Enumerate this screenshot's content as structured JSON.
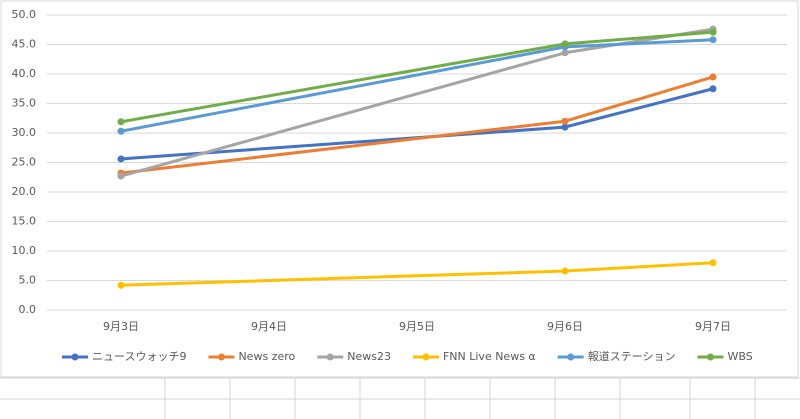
{
  "chart_data": {
    "type": "line",
    "x": [
      3,
      6,
      7
    ],
    "xlim": [
      2.5,
      7.5
    ],
    "xticks": [
      {
        "value": 3,
        "label": "9月3日"
      },
      {
        "value": 4,
        "label": "9月4日"
      },
      {
        "value": 5,
        "label": "9月5日"
      },
      {
        "value": 6,
        "label": "9月6日"
      },
      {
        "value": 7,
        "label": "9月7日"
      }
    ],
    "ylim": [
      0,
      50
    ],
    "yticks": [
      {
        "value": 0,
        "label": "0.0"
      },
      {
        "value": 5,
        "label": "5.0"
      },
      {
        "value": 10,
        "label": "10.0"
      },
      {
        "value": 15,
        "label": "15.0"
      },
      {
        "value": 20,
        "label": "20.0"
      },
      {
        "value": 25,
        "label": "25.0"
      },
      {
        "value": 30,
        "label": "30.0"
      },
      {
        "value": 35,
        "label": "35.0"
      },
      {
        "value": 40,
        "label": "40.0"
      },
      {
        "value": 45,
        "label": "45.0"
      },
      {
        "value": 50,
        "label": "50.0"
      }
    ],
    "grid": true,
    "legend": "bottom",
    "series": [
      {
        "name": "ニュースウォッチ9",
        "color": "#4472c4",
        "values": [
          25.6,
          31.0,
          37.5
        ]
      },
      {
        "name": "News zero",
        "color": "#ed7d31",
        "values": [
          23.2,
          32.0,
          39.5
        ]
      },
      {
        "name": "News23",
        "color": "#a5a5a5",
        "values": [
          22.7,
          43.6,
          47.6
        ]
      },
      {
        "name": "FNN Live News α",
        "color": "#ffc000",
        "values": [
          4.2,
          6.6,
          8.0
        ]
      },
      {
        "name": "報道ステーション",
        "color": "#5b9bd5",
        "values": [
          30.3,
          44.6,
          45.8
        ]
      },
      {
        "name": "WBS",
        "color": "#70ad47",
        "values": [
          31.9,
          45.1,
          47.1
        ]
      }
    ]
  }
}
